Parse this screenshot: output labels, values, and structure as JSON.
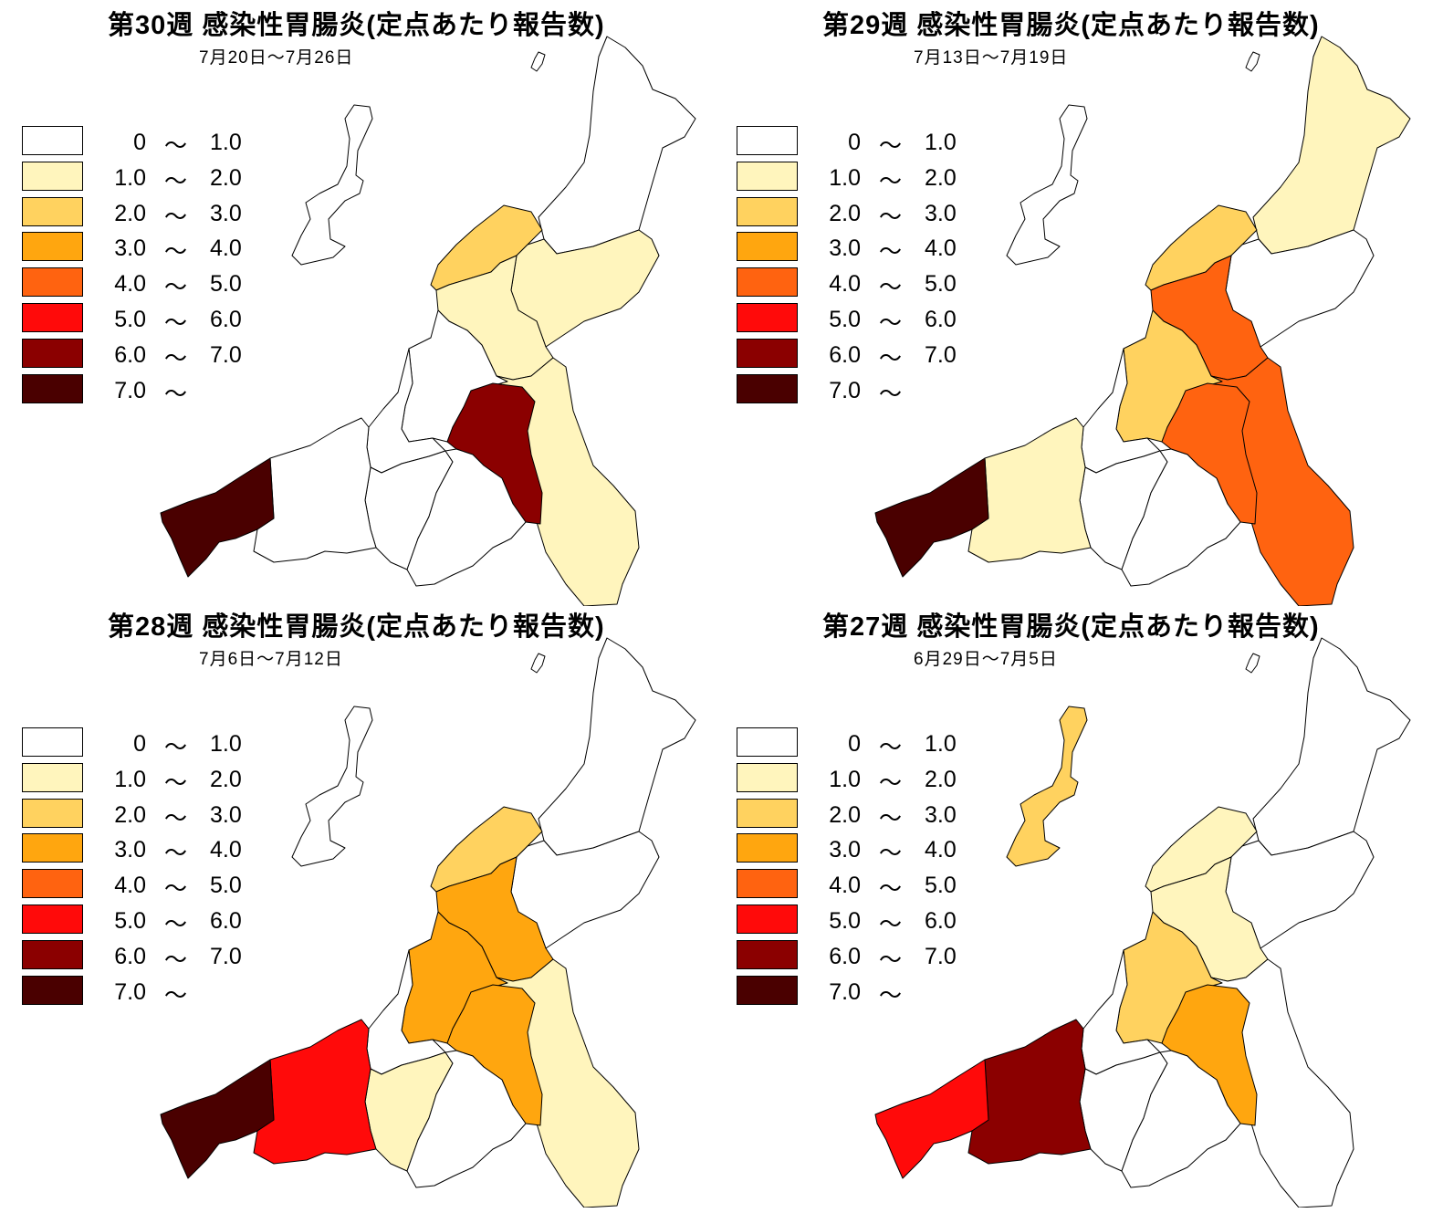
{
  "legend": {
    "bins": [
      {
        "low": "0",
        "tilde": "〜",
        "high": "1.0",
        "color": "#ffffff"
      },
      {
        "low": "1.0",
        "tilde": "〜",
        "high": "2.0",
        "color": "#fff5bd"
      },
      {
        "low": "2.0",
        "tilde": "〜",
        "high": "3.0",
        "color": "#ffd25f"
      },
      {
        "low": "3.0",
        "tilde": "〜",
        "high": "4.0",
        "color": "#ffa60f"
      },
      {
        "low": "4.0",
        "tilde": "〜",
        "high": "5.0",
        "color": "#ff6310"
      },
      {
        "low": "5.0",
        "tilde": "〜",
        "high": "6.0",
        "color": "#ff0a0a"
      },
      {
        "low": "6.0",
        "tilde": "〜",
        "high": "7.0",
        "color": "#8b0000"
      },
      {
        "low": "7.0",
        "tilde": "〜",
        "high": "",
        "color": "#4a0000"
      }
    ]
  },
  "panels": [
    {
      "title": "第30週 感染性胃腸炎(定点あたり報告数)",
      "date": "7月20日〜7月26日",
      "regions": {
        "sado": 0,
        "murakami": 0,
        "shibata": 2,
        "niigata_city": 1,
        "agano": 1,
        "sanjo": 1,
        "kashiwazaki": 0,
        "nagaoka": 0,
        "tokamachi": 0,
        "minamiuonuma": 0,
        "uonuma": 6,
        "joetsu": 0,
        "itoigawa": 7
      }
    },
    {
      "title": "第29週 感染性胃腸炎(定点あたり報告数)",
      "date": "7月13日〜7月19日",
      "regions": {
        "sado": 0,
        "murakami": 1,
        "shibata": 2,
        "niigata_city": 4,
        "agano": 0,
        "sanjo": 4,
        "kashiwazaki": 0,
        "nagaoka": 2,
        "tokamachi": 0,
        "minamiuonuma": 0,
        "uonuma": 4,
        "joetsu": 1,
        "itoigawa": 7
      }
    },
    {
      "title": "第28週 感染性胃腸炎(定点あたり報告数)",
      "date": "7月6日〜7月12日",
      "regions": {
        "sado": 0,
        "murakami": 0,
        "shibata": 2,
        "niigata_city": 3,
        "agano": 0,
        "sanjo": 1,
        "kashiwazaki": 0,
        "nagaoka": 3,
        "tokamachi": 1,
        "minamiuonuma": 0,
        "uonuma": 3,
        "joetsu": 5,
        "itoigawa": 7
      }
    },
    {
      "title": "第27週 感染性胃腸炎(定点あたり報告数)",
      "date": "6月29日〜7月5日",
      "regions": {
        "sado": 2,
        "murakami": 0,
        "shibata": 1,
        "niigata_city": 1,
        "agano": 0,
        "sanjo": 0,
        "kashiwazaki": 0,
        "nagaoka": 2,
        "tokamachi": 0,
        "minamiuonuma": 0,
        "uonuma": 3,
        "joetsu": 6,
        "itoigawa": 5
      }
    }
  ]
}
